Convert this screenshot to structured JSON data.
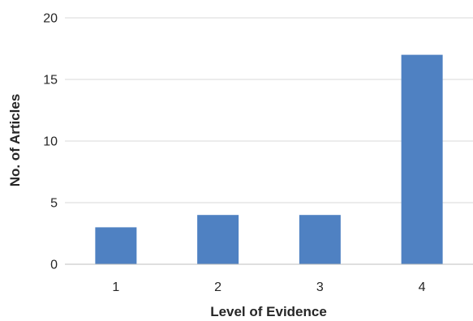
{
  "chart_data": {
    "type": "bar",
    "categories": [
      "1",
      "2",
      "3",
      "4"
    ],
    "series": [
      {
        "values": [
          3,
          4,
          4,
          17
        ]
      }
    ],
    "xlabel": "Level of Evidence",
    "ylabel": "No. of Articles",
    "ylim": [
      0,
      20
    ],
    "yticks": [
      0,
      5,
      10,
      15,
      20
    ],
    "grid": true,
    "legend": "none",
    "bar_color": "#4f81c2",
    "grid_color": "#d9d9d9",
    "axis_color": "#bfbfbf",
    "text_color": "#262626"
  }
}
